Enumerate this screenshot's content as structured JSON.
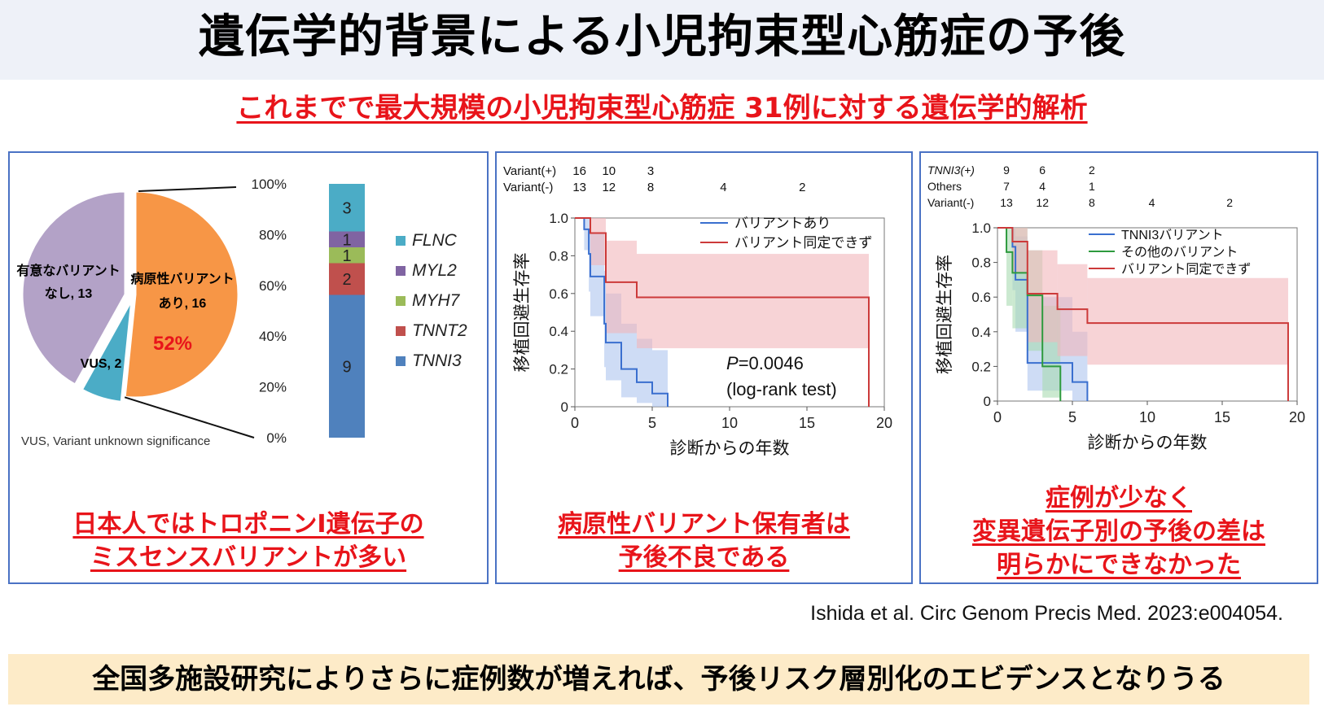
{
  "title": "遺伝学的背景による小児拘束型心筋症の予後",
  "subtitle": "これまでで最大規模の小児拘束型心筋症 31例に対する遺伝学的解析",
  "citation": "Ishida et al. Circ Genom Precis Med. 2023:e004054.",
  "bottom_text": "全国多施設研究によりさらに症例数が増えれば、予後リスク層別化のエビデンスとなりうる",
  "colors": {
    "pie_none": "#b3a2c7",
    "pie_path": "#f79646",
    "pie_vus": "#4bacc6",
    "FLNC": "#4bacc6",
    "MYL2": "#8064a2",
    "MYH7": "#9bbb59",
    "TNNT2": "#c0504d",
    "TNNI3": "#4f81bd",
    "km_blue": "#3a6fcf",
    "km_red": "#cc3a3a",
    "km_green": "#2e9a3e",
    "band_blue": "#aec4ef",
    "band_red": "#f2b5bb",
    "band_green": "#a9dbb1",
    "band_purple": "#bfb0d8"
  },
  "panel1": {
    "caption_lines": [
      "日本人ではトロポニンI遺伝子の",
      "ミスセンスバリアントが多い"
    ],
    "pie_labels": {
      "none": [
        "有意なバリアント",
        "なし, 13"
      ],
      "path": [
        "病原性バリアント",
        "あり, 16"
      ],
      "path_pct": "52%",
      "vus": "VUS, 2"
    },
    "footnote": "VUS, Variant unknown significance",
    "legend": [
      {
        "gene": "FLNC",
        "color": "#4bacc6"
      },
      {
        "gene": "MYL2",
        "color": "#8064a2"
      },
      {
        "gene": "MYH7",
        "color": "#9bbb59"
      },
      {
        "gene": "TNNT2",
        "color": "#c0504d"
      },
      {
        "gene": "TNNI3",
        "color": "#4f81bd"
      }
    ]
  },
  "panel2": {
    "caption_lines": [
      "病原性バリアント保有者は",
      "予後不良である"
    ],
    "risk_table": [
      {
        "label": "Variant(+)",
        "values": [
          "16",
          "10",
          "3",
          "",
          ""
        ]
      },
      {
        "label": "Variant(-)",
        "values": [
          "13",
          "12",
          "8",
          "4",
          "2"
        ]
      }
    ],
    "legend": [
      "バリアントあり",
      "バリアント同定できず"
    ],
    "pvalue": "=0.0046",
    "pvalue_prefix": "P",
    "test": "(log-rank test)"
  },
  "panel3": {
    "caption_lines": [
      "症例が少なく",
      "変異遺伝子別の予後の差は",
      "明らかにできなかった"
    ],
    "risk_table": [
      {
        "label": "TNNI3(+)",
        "values": [
          "9",
          "6",
          "2",
          "",
          ""
        ]
      },
      {
        "label": "Others",
        "values": [
          "7",
          "4",
          "1",
          "",
          ""
        ]
      },
      {
        "label": "Variant(-)",
        "values": [
          "13",
          "12",
          "8",
          "4",
          "2"
        ]
      }
    ],
    "legend": [
      "TNNI3バリアント",
      "その他のバリアント",
      "バリアント同定できず"
    ]
  },
  "chart_data": [
    {
      "type": "pie",
      "title": "",
      "categories": [
        "有意なバリアントなし",
        "病原性バリアントあり",
        "VUS"
      ],
      "values": [
        13,
        16,
        2
      ],
      "highlight_percent": "52%"
    },
    {
      "type": "bar",
      "subtype": "stacked-100%",
      "categories": [
        "病原性バリアント"
      ],
      "series": [
        {
          "name": "TNNI3",
          "values": [
            9
          ]
        },
        {
          "name": "TNNT2",
          "values": [
            2
          ]
        },
        {
          "name": "MYH7",
          "values": [
            1
          ]
        },
        {
          "name": "MYL2",
          "values": [
            1
          ]
        },
        {
          "name": "FLNC",
          "values": [
            3
          ]
        }
      ],
      "ylim": [
        0,
        100
      ],
      "yticks": [
        "0%",
        "20%",
        "40%",
        "60%",
        "80%",
        "100%"
      ]
    },
    {
      "type": "line",
      "subtype": "kaplan-meier",
      "xlabel": "診断からの年数",
      "ylabel": "移植回避生存率",
      "xlim": [
        0,
        20
      ],
      "ylim": [
        0,
        1
      ],
      "xticks": [
        0,
        5,
        10,
        15,
        20
      ],
      "yticks": [
        0,
        0.2,
        0.4,
        0.6,
        0.8,
        1.0
      ],
      "ytick_labels": [
        "0",
        "0.2",
        "0.4",
        "0.6",
        "0.8",
        "1.0"
      ],
      "series": [
        {
          "name": "バリアントあり",
          "color": "#3a6fcf",
          "steps": [
            [
              0,
              1.0
            ],
            [
              0.6,
              0.94
            ],
            [
              0.9,
              0.81
            ],
            [
              1.0,
              0.69
            ],
            [
              1.9,
              0.44
            ],
            [
              2.0,
              0.34
            ],
            [
              3.0,
              0.2
            ],
            [
              4.0,
              0.13
            ],
            [
              5.0,
              0.07
            ],
            [
              6.0,
              0.0
            ]
          ],
          "ci": [
            [
              0,
              1.0,
              1.0
            ],
            [
              0.6,
              0.83,
              1.0
            ],
            [
              0.9,
              0.61,
              1.0
            ],
            [
              1.0,
              0.48,
              0.92
            ],
            [
              1.9,
              0.21,
              0.72
            ],
            [
              2.0,
              0.14,
              0.6
            ],
            [
              3.0,
              0.05,
              0.44
            ],
            [
              4.0,
              0.02,
              0.36
            ],
            [
              5.0,
              0.0,
              0.3
            ],
            [
              6.0,
              0.0,
              0.0
            ]
          ]
        },
        {
          "name": "バリアント同定できず",
          "color": "#cc3a3a",
          "steps": [
            [
              0,
              1.0
            ],
            [
              1.0,
              0.92
            ],
            [
              2.0,
              0.66
            ],
            [
              4.0,
              0.58
            ],
            [
              19.0,
              0.0
            ]
          ],
          "ci": [
            [
              0,
              1.0,
              1.0
            ],
            [
              1.0,
              0.75,
              1.0
            ],
            [
              2.0,
              0.39,
              0.88
            ],
            [
              4.0,
              0.31,
              0.81
            ],
            [
              19.0,
              0.0,
              0.0
            ]
          ]
        }
      ],
      "annotations": [
        "P=0.0046",
        "(log-rank test)"
      ]
    },
    {
      "type": "line",
      "subtype": "kaplan-meier",
      "xlabel": "診断からの年数",
      "ylabel": "移植回避生存率",
      "xlim": [
        0,
        20
      ],
      "ylim": [
        0,
        1
      ],
      "xticks": [
        0,
        5,
        10,
        15,
        20
      ],
      "yticks": [
        0,
        0.2,
        0.4,
        0.6,
        0.8,
        1.0
      ],
      "ytick_labels": [
        "0",
        "0.2",
        "0.4",
        "0.6",
        "0.8",
        "1.0"
      ],
      "series": [
        {
          "name": "TNNI3バリアント",
          "color": "#3a6fcf",
          "steps": [
            [
              0,
              1.0
            ],
            [
              1.0,
              0.89
            ],
            [
              1.2,
              0.7
            ],
            [
              2.0,
              0.22
            ],
            [
              5.0,
              0.11
            ],
            [
              6.0,
              0.0
            ]
          ],
          "ci": [
            [
              0,
              1.0,
              1.0
            ],
            [
              1.0,
              0.64,
              1.0
            ],
            [
              1.2,
              0.4,
              0.95
            ],
            [
              2.0,
              0.06,
              0.6
            ],
            [
              5.0,
              0.0,
              0.4
            ],
            [
              6.0,
              0.0,
              0.0
            ]
          ]
        },
        {
          "name": "その他のバリアント",
          "color": "#2e9a3e",
          "steps": [
            [
              0,
              1.0
            ],
            [
              0.6,
              0.86
            ],
            [
              1.0,
              0.74
            ],
            [
              2.0,
              0.61
            ],
            [
              3.0,
              0.2
            ],
            [
              4.2,
              0.0
            ]
          ],
          "ci": [
            [
              0,
              1.0,
              1.0
            ],
            [
              0.6,
              0.55,
              1.0
            ],
            [
              1.0,
              0.42,
              1.0
            ],
            [
              2.0,
              0.29,
              0.87
            ],
            [
              3.0,
              0.02,
              0.55
            ],
            [
              4.2,
              0.0,
              0.0
            ]
          ]
        },
        {
          "name": "バリアント同定できず",
          "color": "#cc3a3a",
          "steps": [
            [
              0,
              1.0
            ],
            [
              1.0,
              0.92
            ],
            [
              2.0,
              0.62
            ],
            [
              4.0,
              0.53
            ],
            [
              6.0,
              0.45
            ],
            [
              19.4,
              0.0
            ]
          ],
          "ci": [
            [
              0,
              1.0,
              1.0
            ],
            [
              1.0,
              0.74,
              1.0
            ],
            [
              2.0,
              0.34,
              0.87
            ],
            [
              4.0,
              0.26,
              0.79
            ],
            [
              6.0,
              0.21,
              0.71
            ],
            [
              19.4,
              0.0,
              0.0
            ]
          ]
        }
      ]
    }
  ]
}
